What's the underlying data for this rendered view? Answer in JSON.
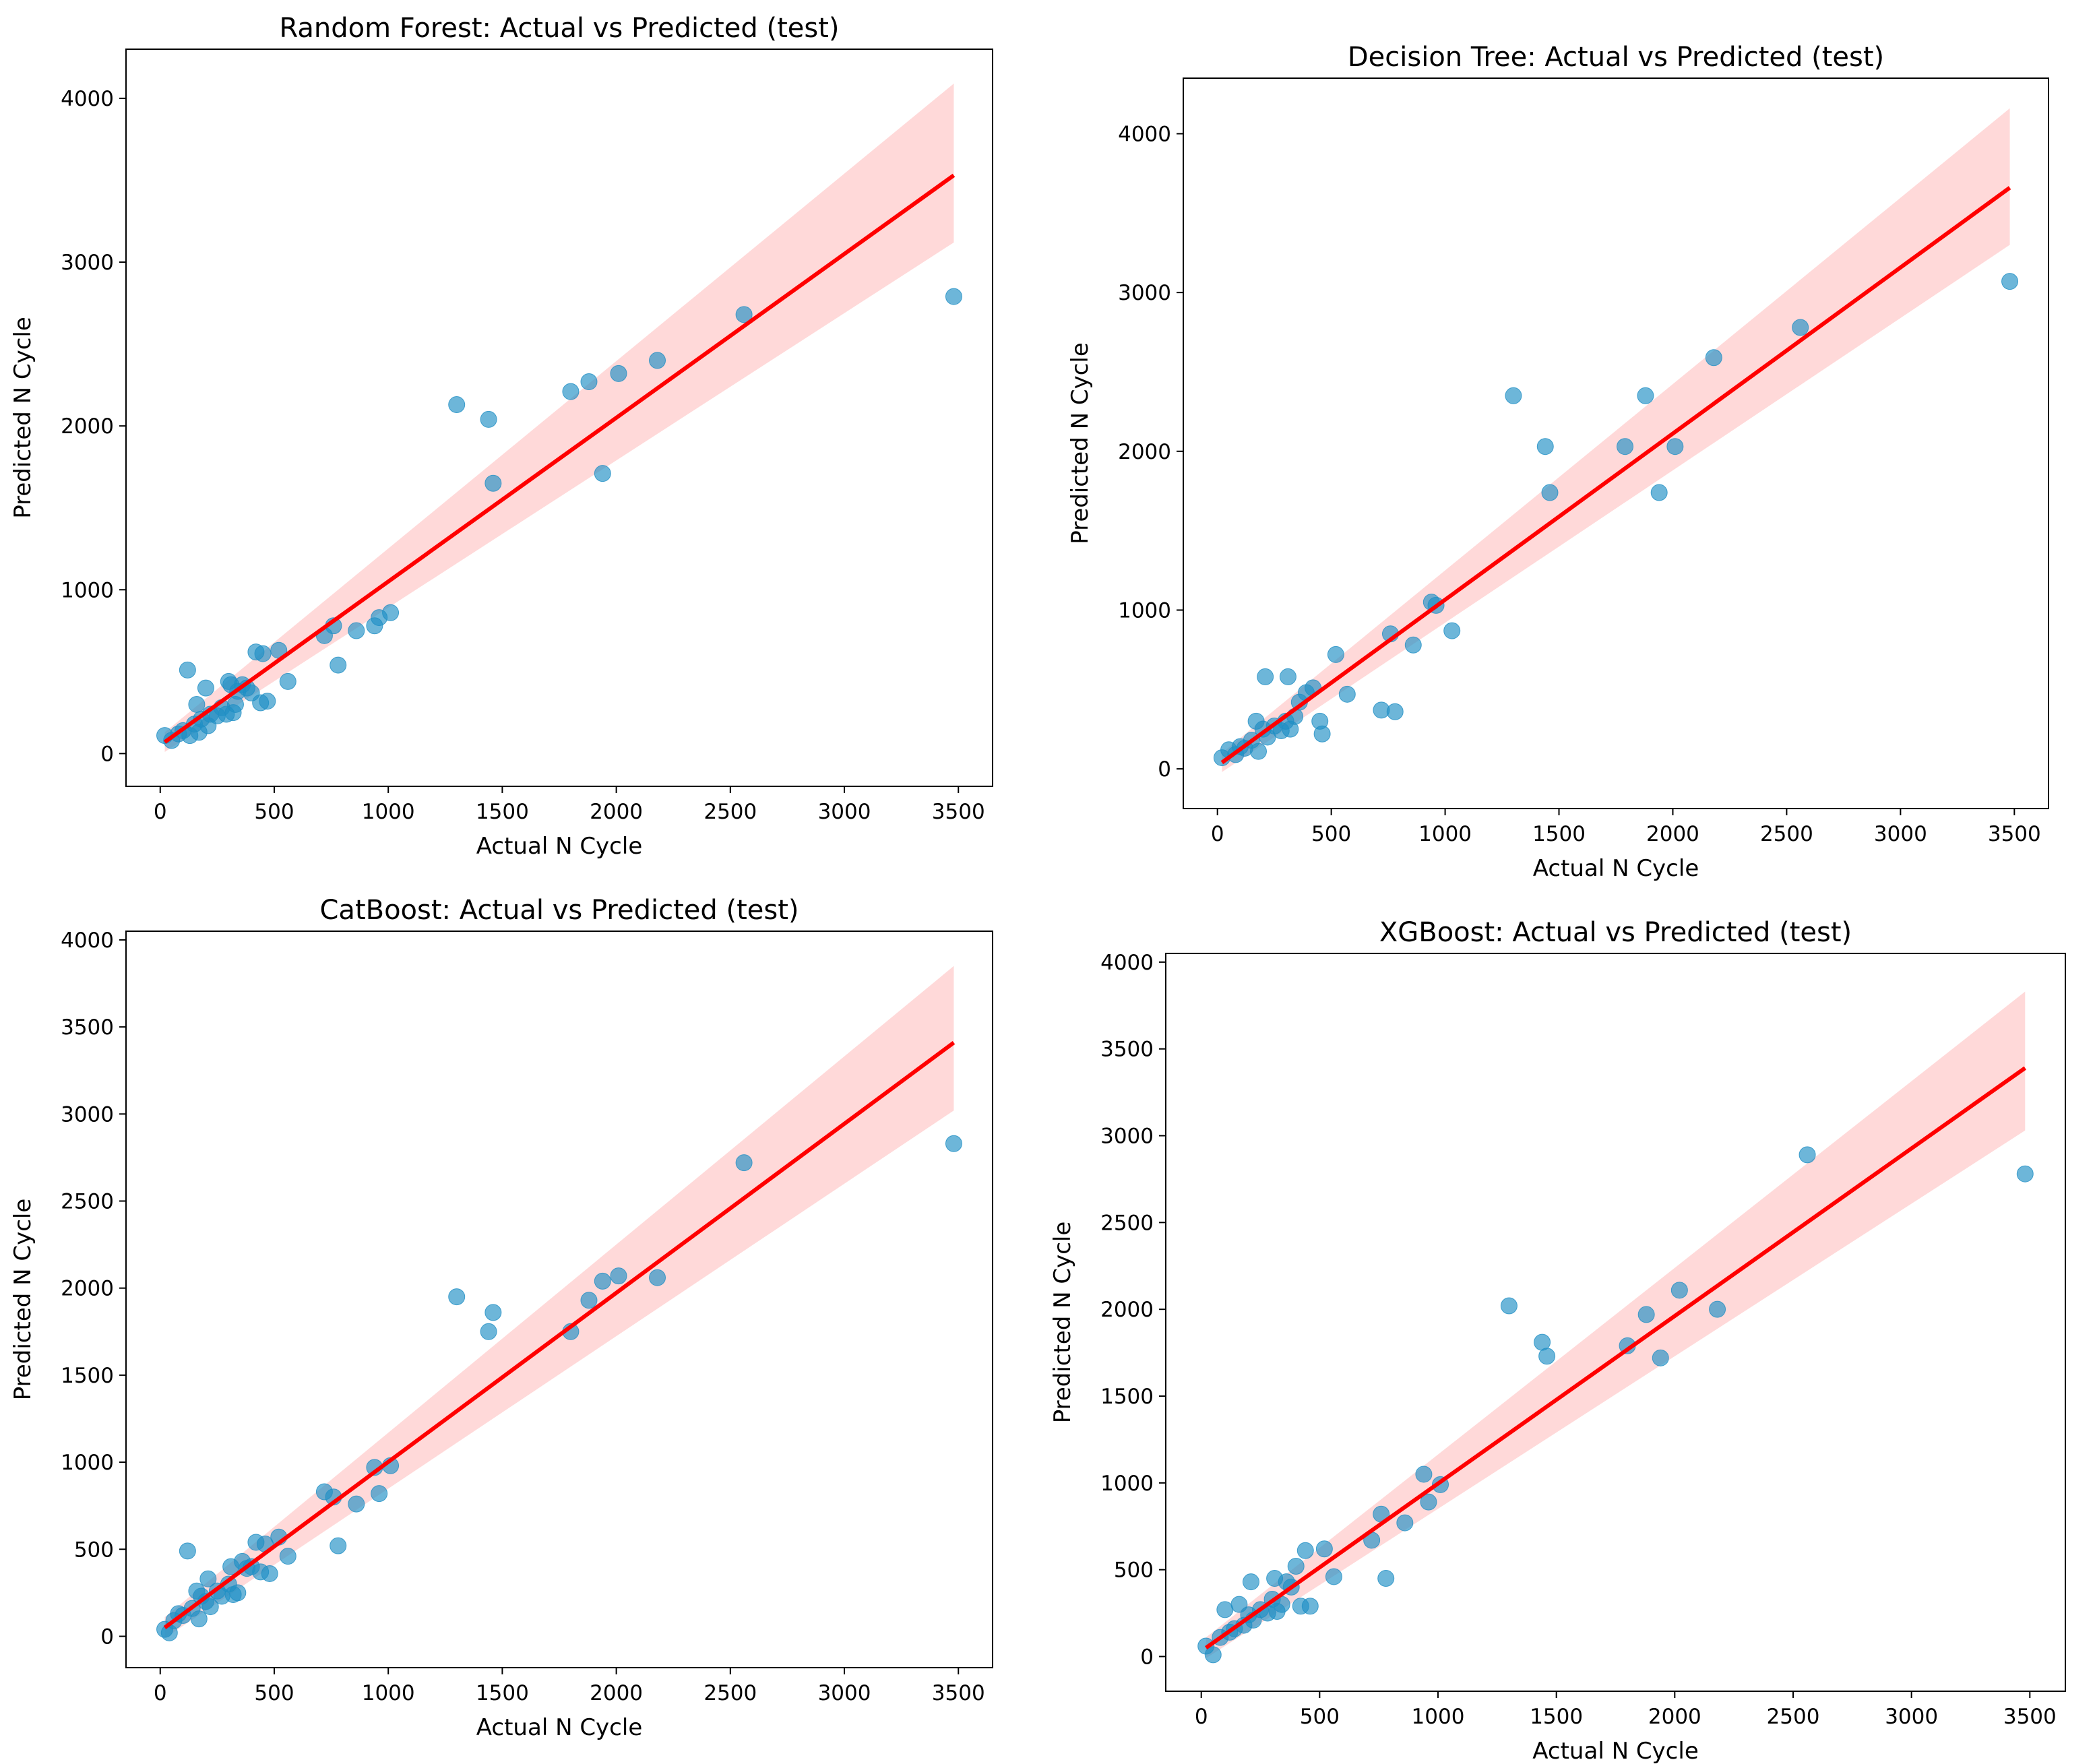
{
  "figure": {
    "background": "#ffffff"
  },
  "style": {
    "point_color": "#1f8fc4",
    "line_color": "#ff0000",
    "band_color": "#ffb3b3"
  },
  "chart_data": [
    {
      "type": "scatter",
      "title": "Random Forest: Actual vs Predicted (test)",
      "xlabel": "Actual N Cycle",
      "ylabel": "Predicted N Cycle",
      "xlim": [
        -150,
        3650
      ],
      "ylim": [
        -200,
        4300
      ],
      "xticks": [
        0,
        500,
        1000,
        1500,
        2000,
        2500,
        3000,
        3500
      ],
      "yticks": [
        0,
        1000,
        2000,
        3000,
        4000
      ],
      "regression": {
        "x": [
          20,
          3480
        ],
        "y": [
          70,
          3530
        ]
      },
      "band": {
        "x": [
          20,
          3480
        ],
        "upper": [
          130,
          4090
        ],
        "lower": [
          10,
          3120
        ]
      },
      "points": {
        "x": [
          20,
          50,
          80,
          100,
          120,
          130,
          150,
          160,
          170,
          180,
          200,
          210,
          220,
          250,
          270,
          290,
          300,
          310,
          320,
          330,
          340,
          360,
          380,
          400,
          420,
          440,
          450,
          470,
          520,
          560,
          720,
          760,
          780,
          860,
          940,
          960,
          1010,
          1300,
          1440,
          1460,
          1800,
          1880,
          1940,
          2010,
          2180,
          2560,
          3480
        ],
        "y": [
          110,
          80,
          120,
          140,
          510,
          110,
          180,
          300,
          130,
          210,
          400,
          170,
          240,
          230,
          280,
          240,
          440,
          420,
          250,
          300,
          380,
          420,
          400,
          370,
          620,
          310,
          610,
          320,
          630,
          440,
          720,
          780,
          540,
          750,
          780,
          830,
          860,
          2130,
          2040,
          1650,
          2210,
          2270,
          1710,
          2320,
          2400,
          2680,
          2790
        ]
      }
    },
    {
      "type": "scatter",
      "title": "Decision Tree: Actual vs Predicted (test)",
      "xlabel": "Actual N Cycle",
      "ylabel": "Predicted N Cycle",
      "xlim": [
        -150,
        3650
      ],
      "ylim": [
        -250,
        4350
      ],
      "xticks": [
        0,
        500,
        1000,
        1500,
        2000,
        2500,
        3000,
        3500
      ],
      "yticks": [
        0,
        1000,
        2000,
        3000,
        4000
      ],
      "regression": {
        "x": [
          20,
          3480
        ],
        "y": [
          40,
          3660
        ]
      },
      "band": {
        "x": [
          20,
          3480
        ],
        "upper": [
          100,
          4160
        ],
        "lower": [
          -20,
          3300
        ]
      },
      "points": {
        "x": [
          20,
          50,
          80,
          100,
          120,
          150,
          170,
          180,
          200,
          210,
          220,
          250,
          280,
          300,
          310,
          320,
          340,
          360,
          390,
          420,
          450,
          460,
          520,
          570,
          720,
          760,
          780,
          860,
          940,
          960,
          1030,
          1300,
          1440,
          1460,
          1790,
          1880,
          1940,
          2010,
          2180,
          2560,
          3480
        ],
        "y": [
          70,
          120,
          90,
          140,
          130,
          180,
          300,
          110,
          250,
          580,
          200,
          270,
          240,
          300,
          580,
          250,
          330,
          420,
          480,
          510,
          300,
          220,
          720,
          470,
          370,
          850,
          360,
          780,
          1050,
          1030,
          870,
          2350,
          2030,
          1740,
          2030,
          2350,
          1740,
          2030,
          2590,
          2780,
          3070
        ]
      }
    },
    {
      "type": "scatter",
      "title": "CatBoost: Actual vs Predicted (test)",
      "xlabel": "Actual N Cycle",
      "ylabel": "Predicted N Cycle",
      "xlim": [
        -150,
        3650
      ],
      "ylim": [
        -180,
        4050
      ],
      "xticks": [
        0,
        500,
        1000,
        1500,
        2000,
        2500,
        3000,
        3500
      ],
      "yticks": [
        0,
        500,
        1000,
        1500,
        2000,
        2500,
        3000,
        3500,
        4000
      ],
      "regression": {
        "x": [
          20,
          3480
        ],
        "y": [
          50,
          3410
        ]
      },
      "band": {
        "x": [
          20,
          3480
        ],
        "upper": [
          110,
          3850
        ],
        "lower": [
          -10,
          3020
        ]
      },
      "points": {
        "x": [
          20,
          40,
          60,
          80,
          100,
          120,
          140,
          160,
          170,
          180,
          200,
          210,
          220,
          250,
          270,
          300,
          310,
          320,
          340,
          360,
          380,
          400,
          420,
          440,
          460,
          480,
          520,
          560,
          720,
          760,
          780,
          860,
          940,
          960,
          1010,
          1300,
          1440,
          1460,
          1800,
          1880,
          1940,
          2010,
          2180,
          2560,
          3480
        ],
        "y": [
          40,
          20,
          90,
          130,
          120,
          490,
          160,
          260,
          100,
          230,
          200,
          330,
          170,
          260,
          230,
          300,
          400,
          240,
          250,
          430,
          390,
          400,
          540,
          370,
          530,
          360,
          570,
          460,
          830,
          800,
          520,
          760,
          970,
          820,
          980,
          1950,
          1750,
          1860,
          1750,
          1930,
          2040,
          2070,
          2060,
          2720,
          2830
        ]
      }
    },
    {
      "type": "scatter",
      "title": "XGBoost: Actual vs Predicted (test)",
      "xlabel": "Actual N Cycle",
      "ylabel": "Predicted N Cycle",
      "xlim": [
        -150,
        3650
      ],
      "ylim": [
        -200,
        4050
      ],
      "xticks": [
        0,
        500,
        1000,
        1500,
        2000,
        2500,
        3000,
        3500
      ],
      "yticks": [
        0,
        500,
        1000,
        1500,
        2000,
        2500,
        3000,
        3500,
        4000
      ],
      "regression": {
        "x": [
          20,
          3480
        ],
        "y": [
          50,
          3390
        ]
      },
      "band": {
        "x": [
          20,
          3480
        ],
        "upper": [
          110,
          3830
        ],
        "lower": [
          -10,
          3030
        ]
      },
      "points": {
        "x": [
          20,
          50,
          80,
          100,
          120,
          140,
          160,
          180,
          200,
          210,
          220,
          250,
          280,
          300,
          310,
          320,
          340,
          360,
          380,
          400,
          420,
          440,
          460,
          520,
          560,
          720,
          760,
          780,
          860,
          940,
          960,
          1010,
          1300,
          1440,
          1460,
          1800,
          1880,
          1940,
          2020,
          2180,
          2560,
          3480
        ],
        "y": [
          60,
          10,
          110,
          270,
          140,
          160,
          300,
          180,
          240,
          430,
          210,
          270,
          250,
          330,
          450,
          260,
          300,
          430,
          400,
          520,
          290,
          610,
          290,
          620,
          460,
          670,
          820,
          450,
          770,
          1050,
          890,
          990,
          2020,
          1810,
          1730,
          1790,
          1970,
          1720,
          2110,
          2000,
          2890,
          2780
        ]
      }
    }
  ]
}
